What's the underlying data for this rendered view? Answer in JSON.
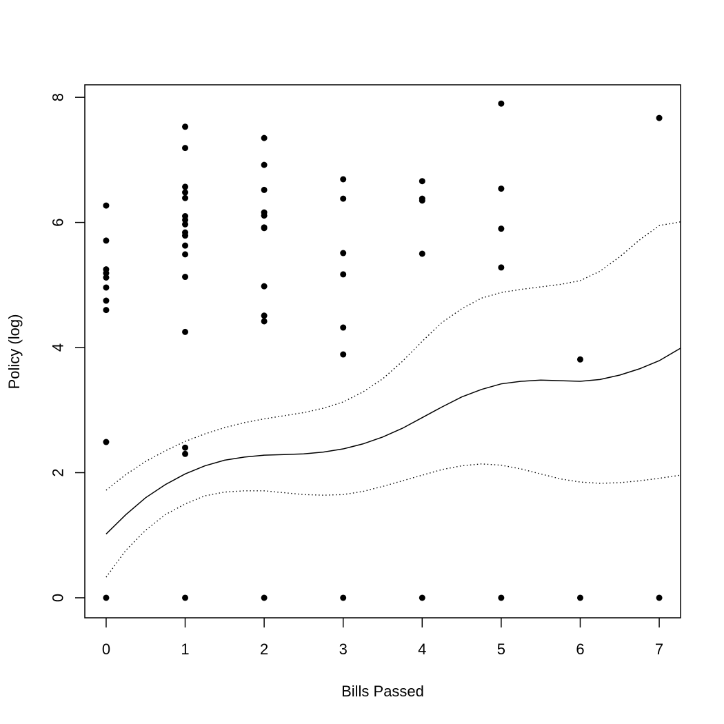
{
  "chart_data": {
    "type": "scatter",
    "title": "",
    "xlabel": "Bills Passed",
    "ylabel": "Policy (log)",
    "xlim": [
      -0.27,
      7.27
    ],
    "ylim": [
      -0.32,
      8.2
    ],
    "x_ticks": [
      0,
      1,
      2,
      3,
      4,
      5,
      6,
      7
    ],
    "y_ticks": [
      0,
      2,
      4,
      6,
      8
    ],
    "grid": false,
    "legend": "none",
    "point_color": "#000000",
    "points": [
      {
        "x": 0,
        "y": 6.27
      },
      {
        "x": 0,
        "y": 5.71
      },
      {
        "x": 0,
        "y": 5.25
      },
      {
        "x": 0,
        "y": 5.19
      },
      {
        "x": 0,
        "y": 5.12
      },
      {
        "x": 0,
        "y": 4.96
      },
      {
        "x": 0,
        "y": 4.75
      },
      {
        "x": 0,
        "y": 4.6
      },
      {
        "x": 0,
        "y": 2.49
      },
      {
        "x": 0,
        "y": 0
      },
      {
        "x": 1,
        "y": 7.53
      },
      {
        "x": 1,
        "y": 7.19
      },
      {
        "x": 1,
        "y": 6.57
      },
      {
        "x": 1,
        "y": 6.48
      },
      {
        "x": 1,
        "y": 6.39
      },
      {
        "x": 1,
        "y": 6.1
      },
      {
        "x": 1,
        "y": 6.04
      },
      {
        "x": 1,
        "y": 5.97
      },
      {
        "x": 1,
        "y": 5.84
      },
      {
        "x": 1,
        "y": 5.79
      },
      {
        "x": 1,
        "y": 5.63
      },
      {
        "x": 1,
        "y": 5.49
      },
      {
        "x": 1,
        "y": 5.13
      },
      {
        "x": 1,
        "y": 4.25
      },
      {
        "x": 1,
        "y": 2.4
      },
      {
        "x": 1,
        "y": 2.3
      },
      {
        "x": 1,
        "y": 0
      },
      {
        "x": 2,
        "y": 7.35
      },
      {
        "x": 2,
        "y": 6.92
      },
      {
        "x": 2,
        "y": 6.52
      },
      {
        "x": 2,
        "y": 6.16
      },
      {
        "x": 2,
        "y": 6.11
      },
      {
        "x": 2,
        "y": 5.92
      },
      {
        "x": 2,
        "y": 5.91
      },
      {
        "x": 2,
        "y": 4.98
      },
      {
        "x": 2,
        "y": 4.51
      },
      {
        "x": 2,
        "y": 4.42
      },
      {
        "x": 2,
        "y": 0
      },
      {
        "x": 3,
        "y": 6.69
      },
      {
        "x": 3,
        "y": 6.38
      },
      {
        "x": 3,
        "y": 5.51
      },
      {
        "x": 3,
        "y": 5.17
      },
      {
        "x": 3,
        "y": 4.32
      },
      {
        "x": 3,
        "y": 3.89
      },
      {
        "x": 3,
        "y": 0
      },
      {
        "x": 4,
        "y": 6.66
      },
      {
        "x": 4,
        "y": 6.38
      },
      {
        "x": 4,
        "y": 6.35
      },
      {
        "x": 4,
        "y": 5.5
      },
      {
        "x": 4,
        "y": 0
      },
      {
        "x": 5,
        "y": 7.9
      },
      {
        "x": 5,
        "y": 6.54
      },
      {
        "x": 5,
        "y": 5.9
      },
      {
        "x": 5,
        "y": 5.28
      },
      {
        "x": 5,
        "y": 0
      },
      {
        "x": 6,
        "y": 3.81
      },
      {
        "x": 6,
        "y": 0
      },
      {
        "x": 7,
        "y": 7.67
      },
      {
        "x": 7,
        "y": 0
      }
    ],
    "series": [
      {
        "style": "solid",
        "x": [
          0,
          0.25,
          0.5,
          0.75,
          1,
          1.25,
          1.5,
          1.75,
          2,
          2.25,
          2.5,
          2.75,
          3,
          3.25,
          3.5,
          3.75,
          4,
          4.25,
          4.5,
          4.75,
          5,
          5.25,
          5.5,
          5.75,
          6,
          6.25,
          6.5,
          6.75,
          7,
          7.27
        ],
        "y": [
          1.02,
          1.33,
          1.6,
          1.81,
          1.98,
          2.11,
          2.2,
          2.25,
          2.28,
          2.29,
          2.3,
          2.33,
          2.38,
          2.46,
          2.57,
          2.71,
          2.88,
          3.05,
          3.21,
          3.33,
          3.42,
          3.46,
          3.48,
          3.47,
          3.46,
          3.49,
          3.56,
          3.66,
          3.79,
          3.99
        ]
      },
      {
        "style": "dotted",
        "x": [
          0,
          0.25,
          0.5,
          0.75,
          1,
          1.25,
          1.5,
          1.75,
          2,
          2.25,
          2.5,
          2.75,
          3,
          3.25,
          3.5,
          3.75,
          4,
          4.25,
          4.5,
          4.75,
          5,
          5.25,
          5.5,
          5.75,
          6,
          6.25,
          6.5,
          6.75,
          7,
          7.27
        ],
        "y": [
          1.72,
          1.97,
          2.18,
          2.35,
          2.5,
          2.62,
          2.72,
          2.8,
          2.86,
          2.91,
          2.96,
          3.03,
          3.13,
          3.29,
          3.5,
          3.78,
          4.1,
          4.4,
          4.62,
          4.79,
          4.88,
          4.93,
          4.97,
          5.01,
          5.07,
          5.22,
          5.45,
          5.72,
          5.95,
          6.01
        ]
      },
      {
        "style": "dotted",
        "x": [
          0,
          0.25,
          0.5,
          0.75,
          1,
          1.25,
          1.5,
          1.75,
          2,
          2.25,
          2.5,
          2.75,
          3,
          3.25,
          3.5,
          3.75,
          4,
          4.25,
          4.5,
          4.75,
          5,
          5.25,
          5.5,
          5.75,
          6,
          6.25,
          6.5,
          6.75,
          7,
          7.27
        ],
        "y": [
          0.33,
          0.76,
          1.08,
          1.33,
          1.5,
          1.63,
          1.69,
          1.71,
          1.71,
          1.68,
          1.65,
          1.64,
          1.65,
          1.7,
          1.78,
          1.87,
          1.96,
          2.05,
          2.11,
          2.14,
          2.12,
          2.06,
          1.98,
          1.9,
          1.85,
          1.83,
          1.84,
          1.87,
          1.91,
          1.96
        ]
      }
    ]
  }
}
